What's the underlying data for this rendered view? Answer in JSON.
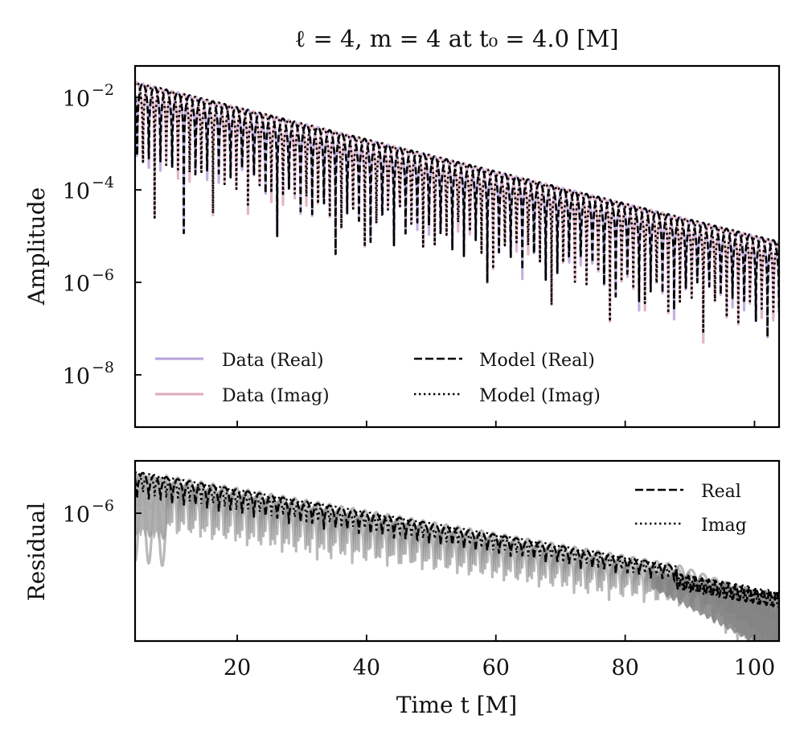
{
  "chart_data": [
    {
      "panel": "top",
      "type": "line",
      "title": "ℓ = 4, m = 4 at t₀ = 4.0 [M]",
      "xlabel": "",
      "ylabel": "Amplitude",
      "yscale": "log",
      "xlim": [
        4.2,
        103.8
      ],
      "ylim_log10": [
        -9.13,
        -1.32
      ],
      "yticks": [
        {
          "exp": -2,
          "label_base": "10",
          "label_exp": "−2"
        },
        {
          "exp": -4,
          "label_base": "10",
          "label_exp": "−4"
        },
        {
          "exp": -6,
          "label_base": "10",
          "label_exp": "−6"
        },
        {
          "exp": -8,
          "label_base": "10",
          "label_exp": "−8"
        }
      ],
      "xticks": [
        20,
        40,
        60,
        80,
        100
      ],
      "grid": false,
      "legend": {
        "placement": "lower-left",
        "columns": 2,
        "entries": [
          {
            "label": "Data (Real)",
            "style": "solid",
            "color": "#b9a3d9"
          },
          {
            "label": "Data (Imag)",
            "style": "solid",
            "color": "#dcaab9"
          },
          {
            "label": "Model (Real)",
            "style": "dashed",
            "color": "#000000"
          },
          {
            "label": "Model (Imag)",
            "style": "dotted",
            "color": "#000000"
          }
        ]
      },
      "signal": {
        "description": "absolute value of damped sinusoid |A e^{-(t-t0)/tau} cos(omega t + phi)|",
        "t0": 4.0,
        "peak_amplitude_at_t0": 0.022,
        "decay_log10_per_M": -0.0347,
        "omega": 1.74,
        "phase_real": 0.0,
        "phase_imag": 1.5708
      },
      "series": [
        {
          "name": "Data (Real)",
          "color": "#b9a3d9",
          "style": "solid"
        },
        {
          "name": "Data (Imag)",
          "color": "#dcaab9",
          "style": "solid"
        },
        {
          "name": "Model (Real)",
          "color": "#000000",
          "style": "dashed"
        },
        {
          "name": "Model (Imag)",
          "color": "#000000",
          "style": "dotted"
        }
      ]
    },
    {
      "panel": "bottom",
      "type": "line",
      "xlabel": "Time t [M]",
      "ylabel": "Residual",
      "yscale": "log",
      "xlim": [
        4.2,
        103.8
      ],
      "ylim_log10": [
        -6.83,
        -5.66
      ],
      "yticks": [
        {
          "exp": -6,
          "label_base": "10",
          "label_exp": "−6"
        }
      ],
      "xticks": [
        20,
        40,
        60,
        80,
        100
      ],
      "xticklabels": [
        "20",
        "40",
        "60",
        "80",
        "100"
      ],
      "grid": false,
      "legend": {
        "placement": "top-right",
        "entries": [
          {
            "label": "Real",
            "style": "dashed",
            "color": "#000000"
          },
          {
            "label": "Imag",
            "style": "dotted",
            "color": "#000000"
          }
        ]
      },
      "band_color": "#808080",
      "envelope": {
        "upper_log10_start": -5.72,
        "upper_log10_end": -6.45,
        "trough_log10_start": -6.1,
        "trough_log10_end": -6.65
      },
      "series": [
        {
          "name": "Real",
          "color": "#000000",
          "style": "dashed"
        },
        {
          "name": "Imag",
          "color": "#000000",
          "style": "dotted"
        }
      ]
    }
  ]
}
